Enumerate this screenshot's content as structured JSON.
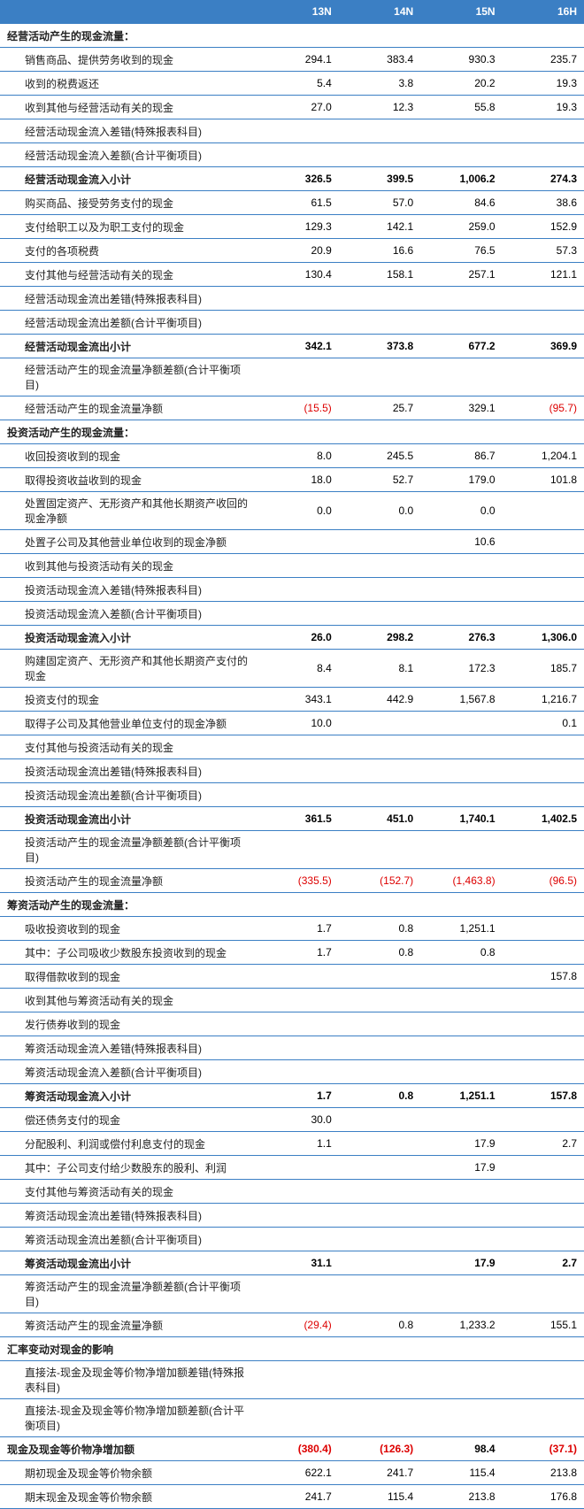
{
  "header": {
    "blank": "",
    "c1": "13N",
    "c2": "14N",
    "c3": "15N",
    "c4": "16H"
  },
  "colors": {
    "header_bg": "#3b7fc4",
    "header_fg": "#ffffff",
    "border": "#3b7fc4",
    "neg": "#dd0000",
    "text": "#222222"
  },
  "rows": [
    {
      "label": "经营活动产生的现金流量：",
      "bold": true,
      "indent": false,
      "v": [
        "",
        "",
        "",
        ""
      ]
    },
    {
      "label": "销售商品、提供劳务收到的现金",
      "indent": true,
      "v": [
        "294.1",
        "383.4",
        "930.3",
        "235.7"
      ]
    },
    {
      "label": "收到的税费返还",
      "indent": true,
      "v": [
        "5.4",
        "3.8",
        "20.2",
        "19.3"
      ]
    },
    {
      "label": "收到其他与经营活动有关的现金",
      "indent": true,
      "v": [
        "27.0",
        "12.3",
        "55.8",
        "19.3"
      ]
    },
    {
      "label": "经营活动现金流入差错(特殊报表科目)",
      "indent": true,
      "v": [
        "",
        "",
        "",
        ""
      ]
    },
    {
      "label": "经营活动现金流入差额(合计平衡项目)",
      "indent": true,
      "v": [
        "",
        "",
        "",
        ""
      ]
    },
    {
      "label": "经营活动现金流入小计",
      "bold": true,
      "indent": true,
      "v": [
        "326.5",
        "399.5",
        "1,006.2",
        "274.3"
      ]
    },
    {
      "label": "购买商品、接受劳务支付的现金",
      "indent": true,
      "v": [
        "61.5",
        "57.0",
        "84.6",
        "38.6"
      ]
    },
    {
      "label": "支付给职工以及为职工支付的现金",
      "indent": true,
      "v": [
        "129.3",
        "142.1",
        "259.0",
        "152.9"
      ]
    },
    {
      "label": "支付的各项税费",
      "indent": true,
      "v": [
        "20.9",
        "16.6",
        "76.5",
        "57.3"
      ]
    },
    {
      "label": "支付其他与经营活动有关的现金",
      "indent": true,
      "v": [
        "130.4",
        "158.1",
        "257.1",
        "121.1"
      ]
    },
    {
      "label": "经营活动现金流出差错(特殊报表科目)",
      "indent": true,
      "v": [
        "",
        "",
        "",
        ""
      ]
    },
    {
      "label": "经营活动现金流出差额(合计平衡项目)",
      "indent": true,
      "v": [
        "",
        "",
        "",
        ""
      ]
    },
    {
      "label": "经营活动现金流出小计",
      "bold": true,
      "indent": true,
      "v": [
        "342.1",
        "373.8",
        "677.2",
        "369.9"
      ]
    },
    {
      "label": "经营活动产生的现金流量净额差额(合计平衡项目)",
      "indent": true,
      "v": [
        "",
        "",
        "",
        ""
      ]
    },
    {
      "label": "经营活动产生的现金流量净额",
      "indent": true,
      "v": [
        "(15.5)",
        "25.7",
        "329.1",
        "(95.7)"
      ],
      "negIdx": [
        0,
        3
      ]
    },
    {
      "label": "投资活动产生的现金流量：",
      "bold": true,
      "indent": false,
      "v": [
        "",
        "",
        "",
        ""
      ]
    },
    {
      "label": "收回投资收到的现金",
      "indent": true,
      "v": [
        "8.0",
        "245.5",
        "86.7",
        "1,204.1"
      ]
    },
    {
      "label": "取得投资收益收到的现金",
      "indent": true,
      "v": [
        "18.0",
        "52.7",
        "179.0",
        "101.8"
      ]
    },
    {
      "label": "处置固定资产、无形资产和其他长期资产收回的现金净额",
      "indent": true,
      "v": [
        "0.0",
        "0.0",
        "0.0",
        ""
      ]
    },
    {
      "label": "处置子公司及其他营业单位收到的现金净额",
      "indent": true,
      "v": [
        "",
        "",
        "10.6",
        ""
      ]
    },
    {
      "label": "收到其他与投资活动有关的现金",
      "indent": true,
      "v": [
        "",
        "",
        "",
        ""
      ]
    },
    {
      "label": "投资活动现金流入差错(特殊报表科目)",
      "indent": true,
      "v": [
        "",
        "",
        "",
        ""
      ]
    },
    {
      "label": "投资活动现金流入差额(合计平衡项目)",
      "indent": true,
      "v": [
        "",
        "",
        "",
        ""
      ]
    },
    {
      "label": "投资活动现金流入小计",
      "bold": true,
      "indent": true,
      "v": [
        "26.0",
        "298.2",
        "276.3",
        "1,306.0"
      ]
    },
    {
      "label": "购建固定资产、无形资产和其他长期资产支付的现金",
      "indent": true,
      "v": [
        "8.4",
        "8.1",
        "172.3",
        "185.7"
      ]
    },
    {
      "label": "投资支付的现金",
      "indent": true,
      "v": [
        "343.1",
        "442.9",
        "1,567.8",
        "1,216.7"
      ]
    },
    {
      "label": "取得子公司及其他营业单位支付的现金净额",
      "indent": true,
      "v": [
        "10.0",
        "",
        "",
        "0.1"
      ]
    },
    {
      "label": "支付其他与投资活动有关的现金",
      "indent": true,
      "v": [
        "",
        "",
        "",
        ""
      ]
    },
    {
      "label": "投资活动现金流出差错(特殊报表科目)",
      "indent": true,
      "v": [
        "",
        "",
        "",
        ""
      ]
    },
    {
      "label": "投资活动现金流出差额(合计平衡项目)",
      "indent": true,
      "v": [
        "",
        "",
        "",
        ""
      ]
    },
    {
      "label": "投资活动现金流出小计",
      "bold": true,
      "indent": true,
      "v": [
        "361.5",
        "451.0",
        "1,740.1",
        "1,402.5"
      ]
    },
    {
      "label": "投资活动产生的现金流量净额差额(合计平衡项目)",
      "indent": true,
      "v": [
        "",
        "",
        "",
        ""
      ]
    },
    {
      "label": "投资活动产生的现金流量净额",
      "indent": true,
      "v": [
        "(335.5)",
        "(152.7)",
        "(1,463.8)",
        "(96.5)"
      ],
      "negIdx": [
        0,
        1,
        2,
        3
      ]
    },
    {
      "label": "筹资活动产生的现金流量：",
      "bold": true,
      "indent": false,
      "v": [
        "",
        "",
        "",
        ""
      ]
    },
    {
      "label": "吸收投资收到的现金",
      "indent": true,
      "v": [
        "1.7",
        "0.8",
        "1,251.1",
        ""
      ]
    },
    {
      "label": "其中：子公司吸收少数股东投资收到的现金",
      "indent": true,
      "v": [
        "1.7",
        "0.8",
        "0.8",
        ""
      ]
    },
    {
      "label": "取得借款收到的现金",
      "indent": true,
      "v": [
        "",
        "",
        "",
        "157.8"
      ]
    },
    {
      "label": "收到其他与筹资活动有关的现金",
      "indent": true,
      "v": [
        "",
        "",
        "",
        ""
      ]
    },
    {
      "label": "发行债券收到的现金",
      "indent": true,
      "v": [
        "",
        "",
        "",
        ""
      ]
    },
    {
      "label": "筹资活动现金流入差错(特殊报表科目)",
      "indent": true,
      "v": [
        "",
        "",
        "",
        ""
      ]
    },
    {
      "label": "筹资活动现金流入差额(合计平衡项目)",
      "indent": true,
      "v": [
        "",
        "",
        "",
        ""
      ]
    },
    {
      "label": "筹资活动现金流入小计",
      "bold": true,
      "indent": true,
      "v": [
        "1.7",
        "0.8",
        "1,251.1",
        "157.8"
      ]
    },
    {
      "label": "偿还债务支付的现金",
      "indent": true,
      "v": [
        "30.0",
        "",
        "",
        ""
      ]
    },
    {
      "label": "分配股利、利润或偿付利息支付的现金",
      "indent": true,
      "v": [
        "1.1",
        "",
        "17.9",
        "2.7"
      ]
    },
    {
      "label": "其中：子公司支付给少数股东的股利、利润",
      "indent": true,
      "v": [
        "",
        "",
        "17.9",
        ""
      ]
    },
    {
      "label": "支付其他与筹资活动有关的现金",
      "indent": true,
      "v": [
        "",
        "",
        "",
        ""
      ]
    },
    {
      "label": "筹资活动现金流出差错(特殊报表科目)",
      "indent": true,
      "v": [
        "",
        "",
        "",
        ""
      ]
    },
    {
      "label": "筹资活动现金流出差额(合计平衡项目)",
      "indent": true,
      "v": [
        "",
        "",
        "",
        ""
      ]
    },
    {
      "label": "筹资活动现金流出小计",
      "bold": true,
      "indent": true,
      "v": [
        "31.1",
        "",
        "17.9",
        "2.7"
      ]
    },
    {
      "label": "筹资活动产生的现金流量净额差额(合计平衡项目)",
      "indent": true,
      "v": [
        "",
        "",
        "",
        ""
      ]
    },
    {
      "label": "筹资活动产生的现金流量净额",
      "indent": true,
      "v": [
        "(29.4)",
        "0.8",
        "1,233.2",
        "155.1"
      ],
      "negIdx": [
        0
      ]
    },
    {
      "label": "汇率变动对现金的影响",
      "bold": true,
      "indent": false,
      "v": [
        "",
        "",
        "",
        ""
      ]
    },
    {
      "label": "直接法-现金及现金等价物净增加额差错(特殊报表科目)",
      "indent": true,
      "v": [
        "",
        "",
        "",
        ""
      ]
    },
    {
      "label": "直接法-现金及现金等价物净增加额差额(合计平衡项目)",
      "indent": true,
      "v": [
        "",
        "",
        "",
        ""
      ]
    },
    {
      "label": "现金及现金等价物净增加额",
      "bold": true,
      "indent": false,
      "v": [
        "(380.4)",
        "(126.3)",
        "98.4",
        "(37.1)"
      ],
      "negIdx": [
        0,
        1,
        3
      ]
    },
    {
      "label": "期初现金及现金等价物余额",
      "indent": true,
      "v": [
        "622.1",
        "241.7",
        "115.4",
        "213.8"
      ]
    },
    {
      "label": "期末现金及现金等价物余额",
      "indent": true,
      "v": [
        "241.7",
        "115.4",
        "213.8",
        "176.8"
      ]
    }
  ]
}
